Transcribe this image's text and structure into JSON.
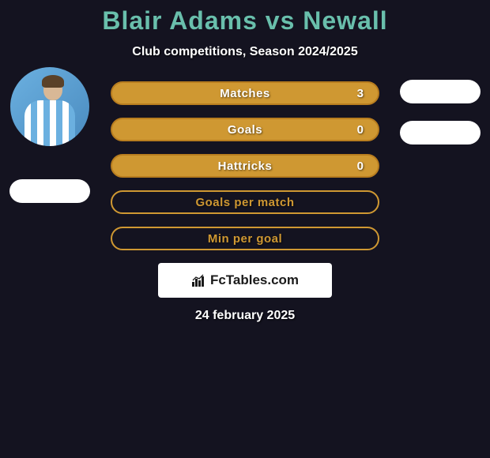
{
  "title": "Blair Adams vs Newall",
  "subtitle": "Club competitions, Season 2024/2025",
  "date": "24 february 2025",
  "logo": {
    "text": "FcTables.com"
  },
  "colors": {
    "accent_title": "#69bfac",
    "bar_solid_fill": "#cf9832",
    "bar_solid_border": "#b87d1f",
    "bar_outline_border": "#cf9832",
    "bar_outline_text": "#cf9832",
    "background": "#141320",
    "white": "#ffffff"
  },
  "left_player": {
    "avatar": "striped-jersey"
  },
  "right_player": {
    "avatar": null
  },
  "stats": [
    {
      "label": "Matches",
      "value": "3",
      "style": "solid"
    },
    {
      "label": "Goals",
      "value": "0",
      "style": "solid"
    },
    {
      "label": "Hattricks",
      "value": "0",
      "style": "solid"
    },
    {
      "label": "Goals per match",
      "value": "",
      "style": "outline"
    },
    {
      "label": "Min per goal",
      "value": "",
      "style": "outline"
    }
  ],
  "left_pills": [
    true
  ],
  "right_pills": [
    true,
    true
  ]
}
